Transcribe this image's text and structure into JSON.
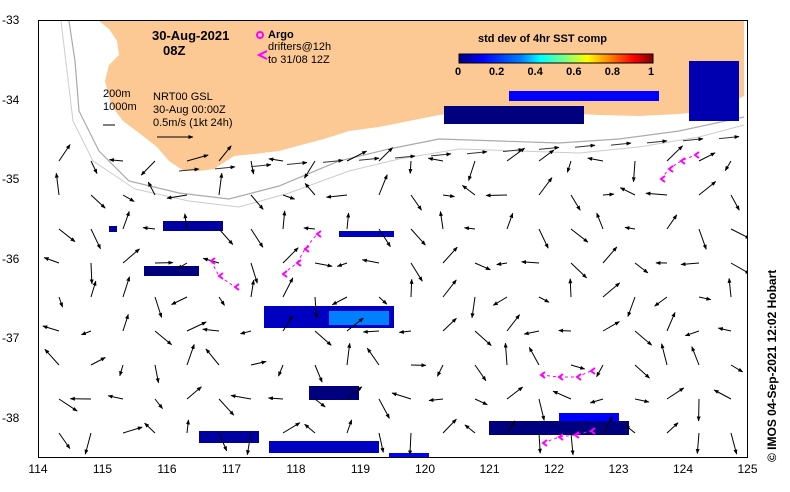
{
  "map": {
    "title_date": "30-Aug-2021",
    "title_hour": "08Z",
    "x_ticks": [
      "114",
      "115",
      "116",
      "117",
      "118",
      "119",
      "120",
      "121",
      "122",
      "123",
      "124",
      "125"
    ],
    "y_ticks": [
      "-33",
      "-34",
      "-35",
      "-36",
      "-37",
      "-38"
    ],
    "lon_range": [
      114,
      125
    ],
    "lat_range": [
      -33,
      -38.5
    ],
    "land_color": "#fcc995",
    "arrow_color": "#000000",
    "drifter_color": "#ff00ff",
    "argo_color": "#ff00ff"
  },
  "legend": {
    "argo_label": "Argo",
    "argo_icon": "circle-marker-icon",
    "drifters_label": "drifters@12h",
    "drifters_label2": "to 31/08 12Z",
    "drifter_icon": "chevron-left-icon"
  },
  "contours": {
    "line1": "200m",
    "line2": "1000m"
  },
  "info": {
    "line1": "NRT00 GSL",
    "line2": "30-Aug 00:00Z",
    "line3": "0.5m/s (1kt 24h)"
  },
  "colorbar": {
    "title": "std dev of 4hr SST comp",
    "ticks": [
      "0",
      "0.2",
      "0.4",
      "0.6",
      "0.8",
      "1"
    ],
    "colors": [
      "#00007f",
      "#0000ff",
      "#007fff",
      "#00ffff",
      "#7fff7f",
      "#ffff00",
      "#ff7f00",
      "#ff0000",
      "#7f0000"
    ]
  },
  "credit": "© IMOS 04-Sep-2021 12:02 Hobart"
}
